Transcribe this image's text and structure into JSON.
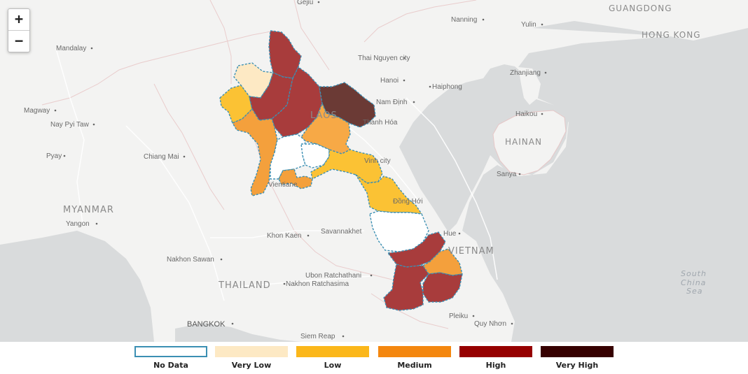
{
  "map": {
    "zoom_in": "+",
    "zoom_out": "−",
    "countries": [
      "MYANMAR",
      "THAILAND",
      "LAOS",
      "VIETNAM",
      "GUANGDONG",
      "HONG KONG",
      "HAINAN"
    ],
    "cities": [
      "Gejiu",
      "Mandalay",
      "Magway",
      "Nay Pyi Taw",
      "Pyay",
      "Yangon",
      "Chiang Mai",
      "Nanning",
      "Yulin",
      "Thai Nguyen city",
      "Hanoi",
      "Haiphong",
      "Nam Định",
      "Thanh Hóa",
      "Vinh city",
      "Đồng Hới",
      "Hue",
      "Zhanjiang",
      "Haikou",
      "Sanya",
      "Vientiane",
      "Khon Kaen",
      "Savannakhet",
      "Nakhon Sawan",
      "Ubon Ratchathani",
      "Nakhon Ratchasima",
      "BANGKOK",
      "Siem Reap",
      "Pleiku",
      "Quy Nhơn"
    ],
    "sea": [
      "South",
      "China",
      "Sea"
    ]
  },
  "legend": {
    "items": [
      {
        "label": "No Data",
        "color": "#ffffff",
        "border": "#3b8fb3"
      },
      {
        "label": "Very Low",
        "color": "#fde9c4",
        "border": "#fde9c4"
      },
      {
        "label": "Low",
        "color": "#fbb71a",
        "border": "#fbb71a"
      },
      {
        "label": "Medium",
        "color": "#f4870f",
        "border": "#f4870f"
      },
      {
        "label": "High",
        "color": "#960000",
        "border": "#960000"
      },
      {
        "label": "Very High",
        "color": "#360000",
        "border": "#360000"
      }
    ]
  }
}
